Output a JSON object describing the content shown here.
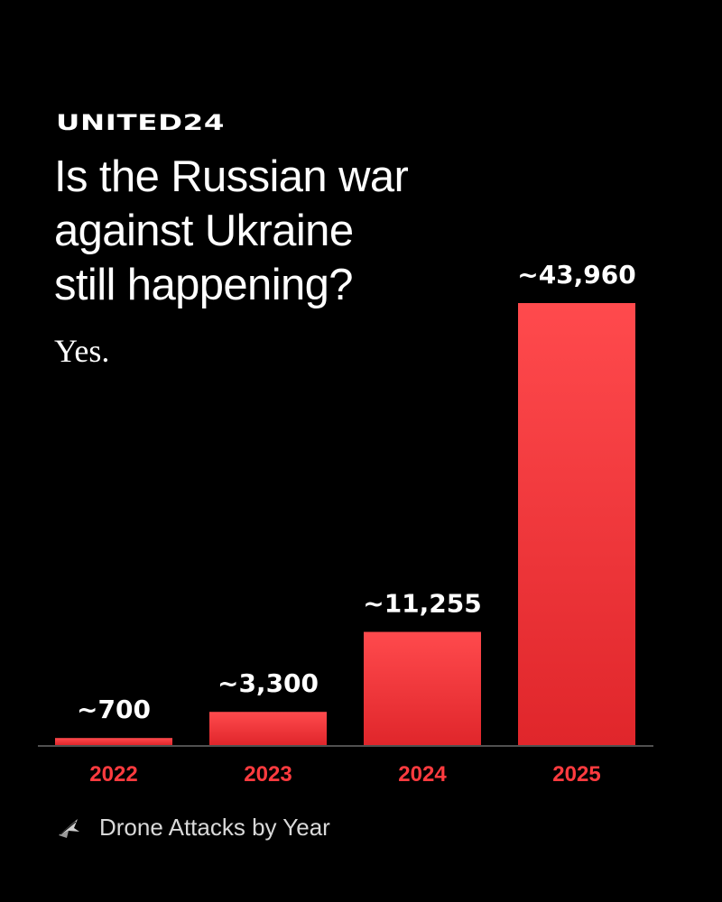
{
  "brand": {
    "name": "UNITED24"
  },
  "headline": {
    "line1": "Is the Russian war",
    "line2": "against Ukraine",
    "line3": "still happening?",
    "answer": "Yes."
  },
  "legend": {
    "label": "Drone Attacks by Year",
    "icon": "drone-icon"
  },
  "colors": {
    "background": "#000000",
    "bar_top": "#ff4a4d",
    "bar_bottom": "#e0262b",
    "year_label": "#ff3b3f",
    "value_label": "#ffffff",
    "baseline": "#6a6a6a"
  },
  "chart_data": {
    "type": "bar",
    "title": "Drone Attacks by Year",
    "categories": [
      "2022",
      "2023",
      "2024",
      "2025"
    ],
    "values": [
      700,
      3300,
      11255,
      43960
    ],
    "value_labels": [
      "~700",
      "~3,300",
      "~11,255",
      "~43,960"
    ],
    "ylim": [
      0,
      43960
    ],
    "grid": false,
    "xlabel": "",
    "ylabel": ""
  }
}
